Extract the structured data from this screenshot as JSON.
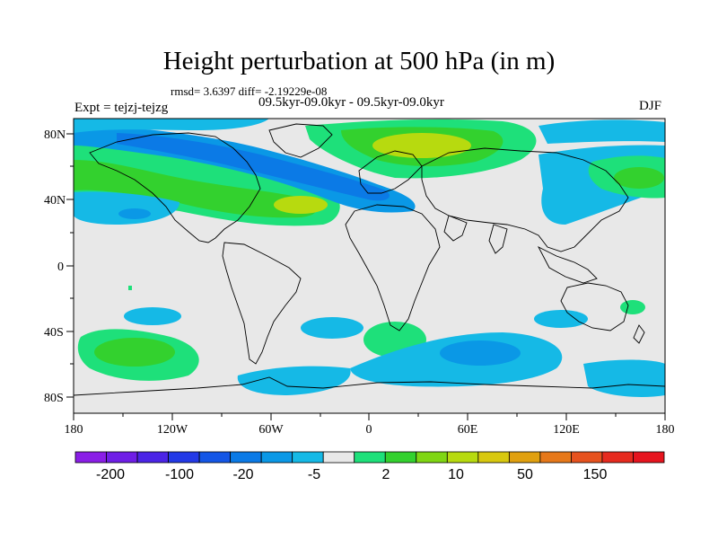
{
  "title": "Height perturbation at 500 hPa (in m)",
  "stats_line": "rmsd= 3.6397 diff= -2.19229e-08",
  "experiment": "Expt = tejzj-tejzg",
  "period": "09.5kyr-09.0kyr - 09.5kyr-09.0kyr",
  "season": "DJF",
  "lat_labels": [
    "80N",
    "40N",
    "0",
    "40S",
    "80S"
  ],
  "lon_labels": [
    "180",
    "120W",
    "60W",
    "0",
    "60E",
    "120E",
    "180"
  ],
  "colorbar": {
    "labels": [
      "-200",
      "-100",
      "-20",
      "-5",
      "2",
      "10",
      "50",
      "150"
    ],
    "colors": [
      "#8a1ee6",
      "#6f1ee6",
      "#4b24e6",
      "#2339e6",
      "#1456e6",
      "#0b7ae6",
      "#0a98e6",
      "#15b9e6",
      "#e8e8e8",
      "#1ee07a",
      "#33d12e",
      "#7fd613",
      "#b7da0f",
      "#d8c80f",
      "#e0a00f",
      "#e6781a",
      "#e6521e",
      "#e62a1e",
      "#e6141e"
    ]
  },
  "colors": {
    "blue_strong": "#0b7ae6",
    "blue_mid": "#0a98e6",
    "blue_light": "#15b9e6",
    "green_teal": "#1ee07a",
    "green": "#33d12e",
    "yellow_green": "#b7da0f",
    "background": "#e8e8e8"
  }
}
